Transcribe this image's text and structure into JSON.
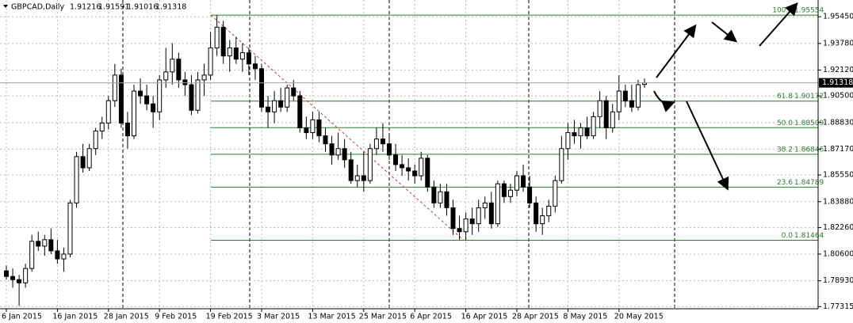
{
  "chart_data": {
    "type": "candlestick",
    "title": "GBPCAD,Daily",
    "categories": [
      "6 Jan 2015",
      null,
      null,
      null,
      null,
      null,
      null,
      null,
      "16 Jan 2015",
      null,
      null,
      null,
      null,
      null,
      null,
      null,
      "28 Jan 2015",
      null,
      null,
      null,
      null,
      null,
      null,
      null,
      "9 Feb 2015",
      null,
      null,
      null,
      null,
      null,
      null,
      null,
      "19 Feb 2015",
      null,
      null,
      null,
      null,
      null,
      null,
      null,
      "3 Mar 2015",
      null,
      null,
      null,
      null,
      null,
      null,
      null,
      "13 Mar 2015",
      null,
      null,
      null,
      null,
      null,
      null,
      null,
      "25 Mar 2015",
      null,
      null,
      null,
      null,
      null,
      null,
      null,
      "6 Apr 2015",
      null,
      null,
      null,
      null,
      null,
      null,
      null,
      "16 Apr 2015",
      null,
      null,
      null,
      null,
      null,
      null,
      null,
      "28 Apr 2015",
      null,
      null,
      null,
      null,
      null,
      null,
      null,
      "8 May 2015",
      null,
      null,
      null,
      null,
      null,
      null,
      null,
      "20 May 2015",
      null,
      null,
      null,
      null
    ],
    "open": [
      1.7955,
      1.792,
      1.79,
      1.788,
      1.797,
      1.814,
      1.811,
      1.815,
      1.808,
      1.803,
      1.806,
      1.838,
      1.867,
      1.86,
      1.872,
      1.883,
      1.888,
      1.902,
      1.918,
      1.888,
      1.88,
      1.908,
      1.905,
      1.9,
      1.895,
      1.915,
      1.92,
      1.928,
      1.915,
      1.912,
      1.896,
      1.915,
      1.918,
      1.935,
      1.948,
      1.93,
      1.935,
      1.928,
      1.932,
      1.925,
      1.922,
      1.898,
      1.895,
      1.902,
      1.898,
      1.91,
      1.905,
      1.885,
      1.882,
      1.89,
      1.88,
      1.875,
      1.868,
      1.872,
      1.865,
      1.852,
      1.855,
      1.852,
      1.872,
      1.878,
      1.875,
      1.868,
      1.862,
      1.86,
      1.858,
      1.855,
      1.866,
      1.848,
      1.838,
      1.845,
      1.835,
      1.822,
      1.82,
      1.828,
      1.825,
      1.835,
      1.838,
      1.825,
      1.85,
      1.842,
      1.846,
      1.855,
      1.848,
      1.838,
      1.825,
      1.83,
      1.836,
      1.852,
      1.872,
      1.882,
      1.88,
      1.885,
      1.88,
      1.892,
      1.902,
      1.885,
      1.895,
      1.908,
      1.902,
      1.898,
      1.91216
    ],
    "high": [
      1.799,
      1.797,
      1.793,
      1.8,
      1.818,
      1.82,
      1.818,
      1.822,
      1.815,
      1.81,
      1.84,
      1.87,
      1.875,
      1.875,
      1.885,
      1.892,
      1.905,
      1.925,
      1.922,
      1.895,
      1.912,
      1.916,
      1.912,
      1.905,
      1.918,
      1.935,
      1.938,
      1.932,
      1.92,
      1.918,
      1.92,
      1.925,
      1.945,
      1.95554,
      1.952,
      1.94,
      1.942,
      1.938,
      1.935,
      1.93,
      1.925,
      1.905,
      1.908,
      1.91,
      1.912,
      1.915,
      1.908,
      1.892,
      1.895,
      1.895,
      1.885,
      1.88,
      1.882,
      1.878,
      1.87,
      1.862,
      1.87,
      1.875,
      1.885,
      1.888,
      1.88,
      1.875,
      1.868,
      1.866,
      1.862,
      1.87,
      1.868,
      1.852,
      1.85,
      1.85,
      1.84,
      1.83,
      1.832,
      1.835,
      1.84,
      1.842,
      1.845,
      1.852,
      1.852,
      1.85,
      1.858,
      1.862,
      1.855,
      1.842,
      1.835,
      1.84,
      1.855,
      1.88,
      1.888,
      1.89,
      1.888,
      1.892,
      1.895,
      1.908,
      1.905,
      1.9,
      1.918,
      1.912,
      1.912,
      1.915,
      1.91591
    ],
    "low": [
      1.79,
      1.785,
      1.7735,
      1.785,
      1.795,
      1.808,
      1.805,
      1.806,
      1.8,
      1.795,
      1.804,
      1.835,
      1.857,
      1.858,
      1.868,
      1.878,
      1.884,
      1.898,
      1.885,
      1.872,
      1.878,
      1.9,
      1.896,
      1.885,
      1.89,
      1.91,
      1.912,
      1.91,
      1.905,
      1.893,
      1.894,
      1.905,
      1.915,
      1.93,
      1.925,
      1.92,
      1.925,
      1.92,
      1.918,
      1.915,
      1.895,
      1.885,
      1.888,
      1.895,
      1.895,
      1.902,
      1.882,
      1.878,
      1.878,
      1.876,
      1.87,
      1.862,
      1.865,
      1.86,
      1.85,
      1.848,
      1.845,
      1.85,
      1.868,
      1.87,
      1.865,
      1.858,
      1.855,
      1.852,
      1.85,
      1.852,
      1.845,
      1.835,
      1.835,
      1.83,
      1.818,
      1.815,
      1.81464,
      1.818,
      1.82,
      1.828,
      1.822,
      1.823,
      1.838,
      1.838,
      1.842,
      1.845,
      1.835,
      1.82,
      1.818,
      1.826,
      1.832,
      1.85,
      1.865,
      1.875,
      1.872,
      1.878,
      1.878,
      1.885,
      1.878,
      1.882,
      1.89,
      1.898,
      1.895,
      1.896,
      1.91016
    ],
    "close": [
      1.792,
      1.79,
      1.788,
      1.797,
      1.814,
      1.811,
      1.815,
      1.808,
      1.803,
      1.806,
      1.838,
      1.867,
      1.86,
      1.872,
      1.883,
      1.888,
      1.902,
      1.918,
      1.888,
      1.88,
      1.908,
      1.905,
      1.9,
      1.895,
      1.915,
      1.92,
      1.928,
      1.915,
      1.912,
      1.896,
      1.915,
      1.918,
      1.935,
      1.948,
      1.93,
      1.935,
      1.928,
      1.932,
      1.925,
      1.922,
      1.898,
      1.895,
      1.902,
      1.898,
      1.91,
      1.905,
      1.885,
      1.882,
      1.89,
      1.88,
      1.875,
      1.868,
      1.872,
      1.865,
      1.852,
      1.855,
      1.852,
      1.872,
      1.878,
      1.875,
      1.868,
      1.862,
      1.86,
      1.858,
      1.855,
      1.866,
      1.848,
      1.838,
      1.845,
      1.835,
      1.822,
      1.82,
      1.828,
      1.825,
      1.835,
      1.838,
      1.825,
      1.85,
      1.842,
      1.846,
      1.855,
      1.848,
      1.838,
      1.825,
      1.83,
      1.836,
      1.852,
      1.872,
      1.882,
      1.88,
      1.885,
      1.88,
      1.892,
      1.902,
      1.885,
      1.895,
      1.908,
      1.902,
      1.898,
      1.912,
      1.91318
    ],
    "ylim": [
      1.7718,
      1.965
    ],
    "yticks": [
      {
        "value": 1.9545,
        "label": "1.95450"
      },
      {
        "value": 1.9378,
        "label": "1.93780"
      },
      {
        "value": 1.9212,
        "label": "1.92120"
      },
      {
        "value": 1.905,
        "label": "1.90500"
      },
      {
        "value": 1.8883,
        "label": "1.88830"
      },
      {
        "value": 1.8717,
        "label": "1.87170"
      },
      {
        "value": 1.8555,
        "label": "1.85550"
      },
      {
        "value": 1.8388,
        "label": "1.83880"
      },
      {
        "value": 1.8226,
        "label": "1.82260"
      },
      {
        "value": 1.806,
        "label": "1.80600"
      },
      {
        "value": 1.7893,
        "label": "1.78930"
      },
      {
        "value": 1.77315,
        "label": "1.77315"
      }
    ],
    "fib_levels": [
      {
        "label": "100.0",
        "price": 1.95554
      },
      {
        "label": "61.8",
        "price": 1.90172
      },
      {
        "label": "50.0",
        "price": 1.88509
      },
      {
        "label": "38.2",
        "price": 1.86846
      },
      {
        "label": "23.6",
        "price": 1.84789
      },
      {
        "label": "0.0",
        "price": 1.81464
      }
    ],
    "bull_color": "#ffffff",
    "bear_color": "#000000",
    "fib_color": "#2a7a2a",
    "grid": true
  }
}
